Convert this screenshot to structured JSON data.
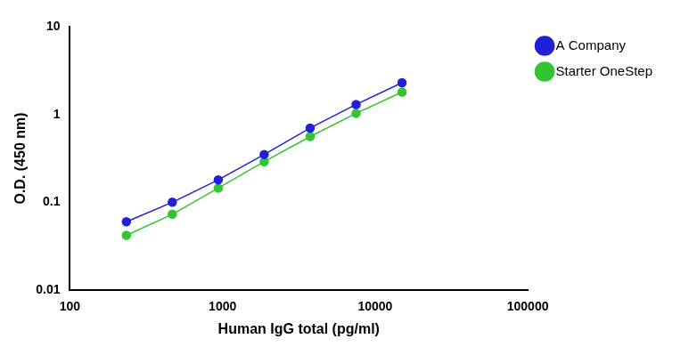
{
  "chart_data": {
    "type": "line",
    "x_label": "Human IgG total (pg/ml)",
    "y_label": "O.D. (450 nm)",
    "x": [
      234.4,
      468.8,
      937.5,
      1875,
      3750,
      7500,
      15000
    ],
    "series": [
      {
        "name": "A Company",
        "color": "#2020d8",
        "marker": "circle",
        "line_style": "solid",
        "values": [
          0.06,
          0.1,
          0.18,
          0.35,
          0.7,
          1.3,
          2.3
        ]
      },
      {
        "name": "Starter OneStep",
        "color": "#33c433",
        "marker": "circle",
        "line_style": "solid",
        "values": [
          0.042,
          0.073,
          0.145,
          0.29,
          0.56,
          1.03,
          1.8
        ]
      }
    ],
    "log": true,
    "xlim": [
      100,
      100000
    ],
    "xticks": [
      100,
      1000,
      10000,
      100000
    ],
    "ylim": [
      0.01,
      10
    ],
    "yticks": [
      0.01,
      0.1,
      1,
      10
    ],
    "grid": false,
    "legend": "right"
  }
}
